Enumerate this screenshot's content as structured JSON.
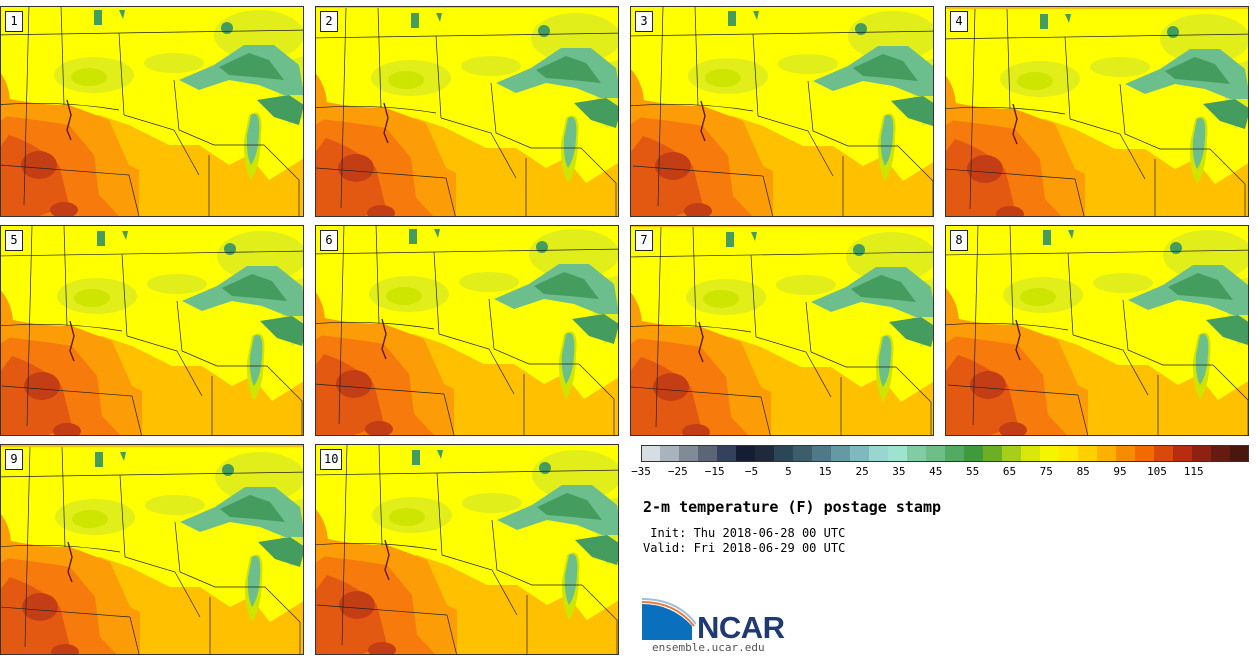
{
  "figure": {
    "title": "2-m temperature (F) postage stamp",
    "init": " Init: Thu 2018-06-28 00 UTC",
    "valid": "Valid: Fri 2018-06-29 00 UTC",
    "logo_text": "NCAR",
    "site": "ensemble.ucar.edu"
  },
  "members": [
    {
      "label": "1"
    },
    {
      "label": "2"
    },
    {
      "label": "3"
    },
    {
      "label": "4"
    },
    {
      "label": "5"
    },
    {
      "label": "6"
    },
    {
      "label": "7"
    },
    {
      "label": "8"
    },
    {
      "label": "9"
    },
    {
      "label": "10"
    }
  ],
  "colorbar": {
    "min": -35,
    "max": 125,
    "step": 5,
    "ticks": [
      "−35",
      "−25",
      "−15",
      "−5",
      "5",
      "15",
      "25",
      "35",
      "45",
      "55",
      "65",
      "75",
      "85",
      "95",
      "105",
      "115"
    ],
    "colors": [
      "#d6dde3",
      "#a9b3bd",
      "#808b98",
      "#5a6677",
      "#34415a",
      "#141e33",
      "#1e2a3a",
      "#2b4656",
      "#3c5e6b",
      "#4f7986",
      "#6599a4",
      "#80b9bd",
      "#99d6cf",
      "#9de3cf",
      "#82cca4",
      "#6fbe87",
      "#52aa63",
      "#3e9a3c",
      "#6caf24",
      "#a5cf1a",
      "#d9e80b",
      "#f6f500",
      "#fde900",
      "#ffd100",
      "#fcb000",
      "#f88c00",
      "#f26a00",
      "#d9490c",
      "#b62d12",
      "#8f2112",
      "#651a12",
      "#4a170f"
    ]
  },
  "map_colors": {
    "t70": "#e1ee19",
    "t75": "#ffff00",
    "t80": "#ffd700",
    "t85": "#ffc000",
    "t90": "#fc9c07",
    "t95": "#f77a0c",
    "t100": "#e45912",
    "t105": "#c33e15",
    "green_light": "#cde500",
    "lake": "#6cbf8c",
    "lake_dark": "#459c5f",
    "forest": "#86cf49"
  }
}
